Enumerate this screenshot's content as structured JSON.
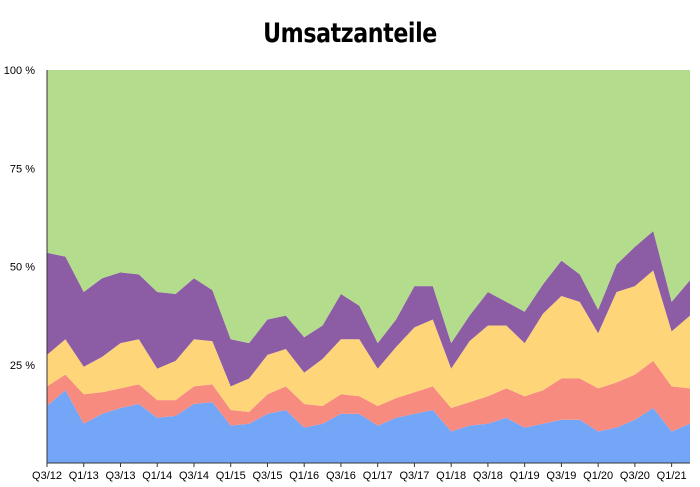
{
  "chart_data": {
    "type": "area",
    "stacked": true,
    "title": "Umsatzanteile",
    "xlabel": "",
    "ylabel": "",
    "ylim": [
      0,
      100
    ],
    "y_ticks": [
      "100 %",
      "75 %",
      "50 %",
      "25 %"
    ],
    "grid": false,
    "legend": "none",
    "x": [
      "Q3/12",
      "Q4/12",
      "Q1/13",
      "Q2/13",
      "Q3/13",
      "Q4/13",
      "Q1/14",
      "Q2/14",
      "Q3/14",
      "Q4/14",
      "Q1/15",
      "Q2/15",
      "Q3/15",
      "Q4/15",
      "Q1/16",
      "Q2/16",
      "Q3/16",
      "Q4/16",
      "Q1/17",
      "Q2/17",
      "Q3/17",
      "Q4/17",
      "Q1/18",
      "Q2/18",
      "Q3/18",
      "Q4/18",
      "Q1/19",
      "Q2/19",
      "Q3/19",
      "Q4/19",
      "Q1/20",
      "Q2/20",
      "Q3/20",
      "Q4/20",
      "Q1/21",
      "Q2/21"
    ],
    "x_tick_labels": [
      "Q3/12",
      "Q1/13",
      "Q3/13",
      "Q1/14",
      "Q3/14",
      "Q1/15",
      "Q3/15",
      "Q1/16",
      "Q3/16",
      "Q1/17",
      "Q3/17",
      "Q1/18",
      "Q3/18",
      "Q1/19",
      "Q3/19",
      "Q1/20",
      "Q3/20",
      "Q1/21"
    ],
    "series": [
      {
        "color": "#74a6f8",
        "values": [
          14.5,
          18.5,
          10,
          12.5,
          14,
          15,
          11.5,
          12,
          15,
          15.5,
          9.5,
          10,
          12.5,
          13.5,
          9,
          10,
          12.5,
          12.5,
          9.5,
          11.5,
          12.5,
          13.5,
          8,
          9.5,
          10,
          11.5,
          9,
          10,
          11,
          11,
          8,
          9,
          11,
          14,
          8,
          10
        ]
      },
      {
        "color": "#f78b80",
        "values": [
          5,
          4,
          7.5,
          5.5,
          5,
          5,
          4.5,
          4,
          4.5,
          4.5,
          4,
          3,
          5,
          6,
          6,
          4.5,
          5,
          4.5,
          5,
          5,
          5.5,
          6,
          6,
          6,
          7,
          7.5,
          8,
          8.5,
          10.5,
          10.5,
          11,
          11.5,
          11.5,
          12,
          11.5,
          9
        ]
      },
      {
        "color": "#fed679",
        "values": [
          8,
          9,
          7,
          9,
          11.5,
          11.5,
          8,
          10,
          12,
          11,
          6,
          8.5,
          10,
          9.5,
          8,
          12,
          14,
          14.5,
          9.5,
          13,
          16.5,
          17,
          10,
          15.5,
          18,
          16,
          13.5,
          19.5,
          21,
          19.5,
          14,
          23,
          22.5,
          23,
          14,
          18.5
        ]
      },
      {
        "color": "#8c5ca4",
        "values": [
          26,
          21,
          19,
          20,
          18,
          16.5,
          19.5,
          17,
          15.5,
          13,
          12,
          9,
          9,
          8.5,
          9,
          8.5,
          11.5,
          8.5,
          6.5,
          7,
          10.5,
          8.5,
          6.5,
          6.5,
          8.5,
          6,
          8,
          7.5,
          9,
          7,
          6,
          7,
          10,
          10,
          7.5,
          9
        ]
      },
      {
        "color": "#b3dc8c",
        "values": [
          46.5,
          47.5,
          56.5,
          53,
          51.5,
          52,
          56.5,
          57,
          53,
          56,
          68.5,
          69.5,
          63.5,
          62.5,
          68,
          65,
          57,
          60,
          69.5,
          63.5,
          55,
          55,
          69.5,
          62.5,
          56.5,
          59,
          61.5,
          54.5,
          48.5,
          52,
          61,
          49.5,
          45,
          41,
          59,
          53.5
        ]
      }
    ]
  }
}
